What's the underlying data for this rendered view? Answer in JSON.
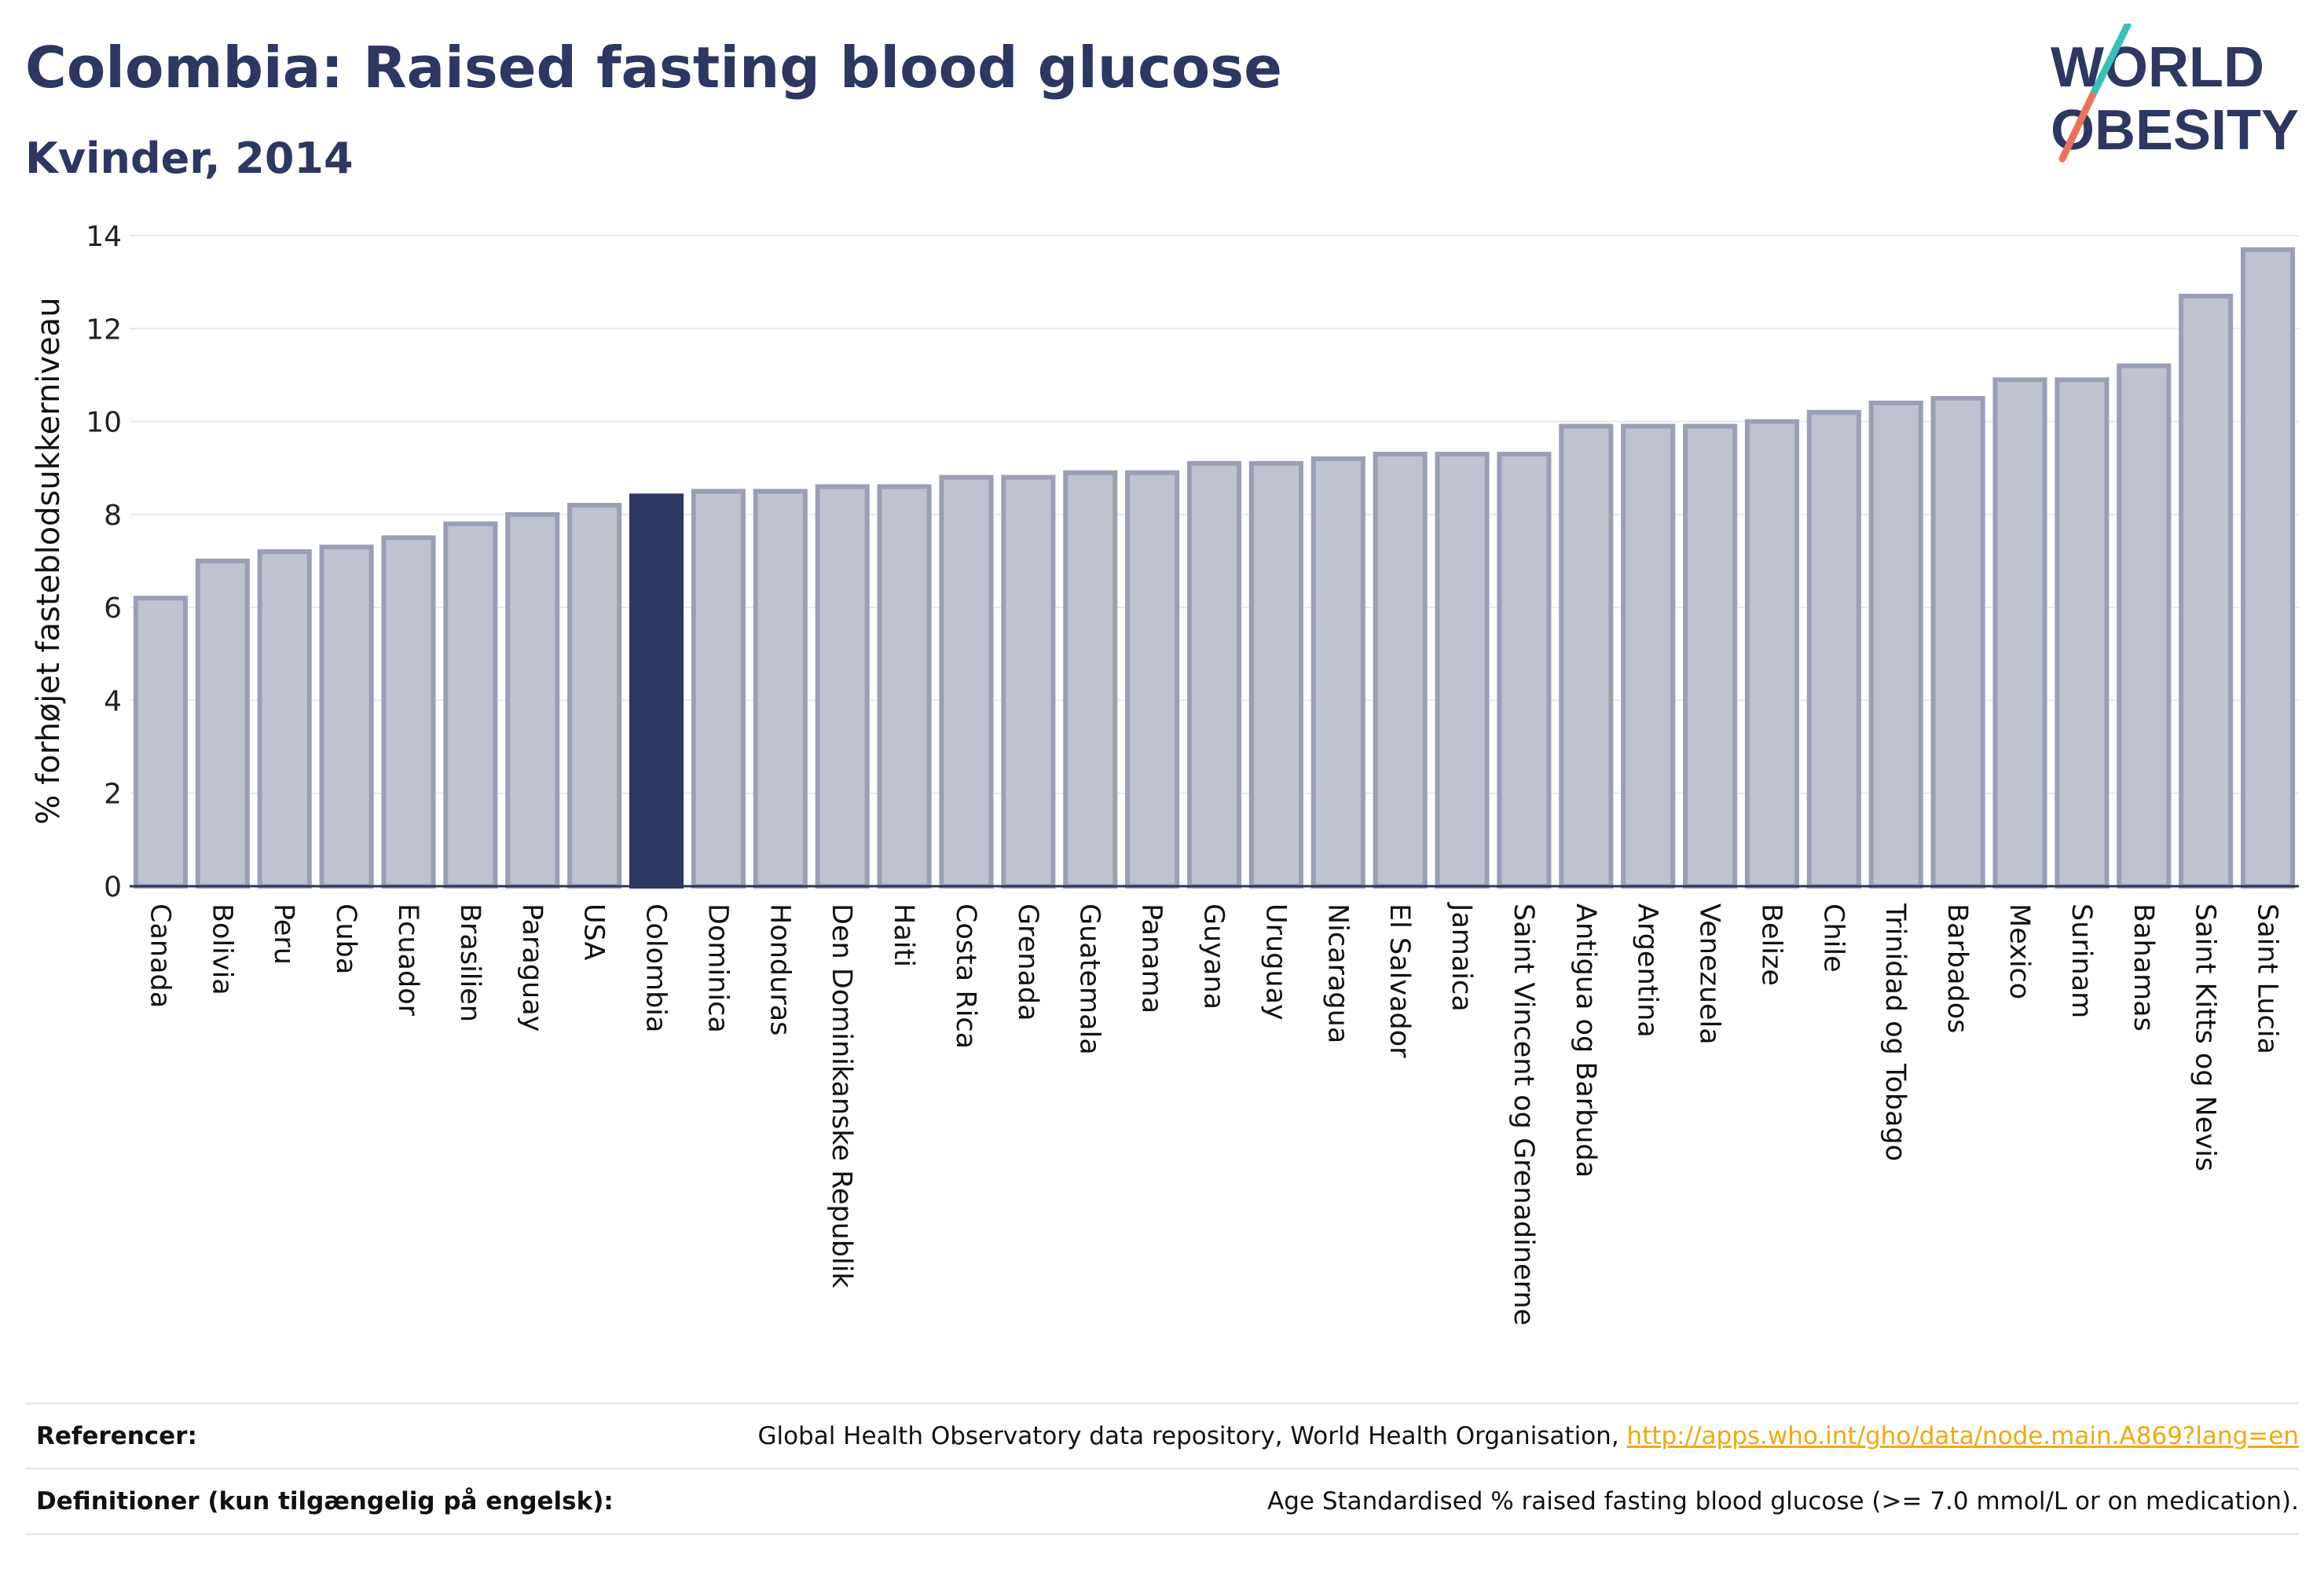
{
  "header": {
    "title": "Colombia: Raised fasting blood glucose",
    "subtitle": "Kvinder, 2014"
  },
  "logo": {
    "line1": "WORLD",
    "line2": "OBESITY"
  },
  "colors": {
    "bar": "#bfc2cf",
    "bar_border": "#9a9fb6",
    "highlight": "#2c3762",
    "grid": "#e6e8ef",
    "axis": "#2c3762",
    "logo_text": "#2c3762",
    "logo_teal": "#3bbfb9",
    "logo_coral": "#e8735c",
    "link": "#f0a80f"
  },
  "chart_data": {
    "type": "bar",
    "title": "Colombia: Raised fasting blood glucose",
    "subtitle": "Kvinder, 2014",
    "xlabel": "",
    "ylabel": "% forhøjet fasteblodsukkerniveau",
    "ylim": [
      0,
      14
    ],
    "yticks": [
      0,
      2,
      4,
      6,
      8,
      10,
      12,
      14
    ],
    "grid": true,
    "highlight": "Colombia",
    "categories": [
      "Canada",
      "Bolivia",
      "Peru",
      "Cuba",
      "Ecuador",
      "Brasilien",
      "Paraguay",
      "USA",
      "Colombia",
      "Dominica",
      "Honduras",
      "Den Dominikanske Republik",
      "Haiti",
      "Costa Rica",
      "Grenada",
      "Guatemala",
      "Panama",
      "Guyana",
      "Uruguay",
      "Nicaragua",
      "El Salvador",
      "Jamaica",
      "Saint Vincent og Grenadinerne",
      "Antigua og Barbuda",
      "Argentina",
      "Venezuela",
      "Belize",
      "Chile",
      "Trinidad og Tobago",
      "Barbados",
      "Mexico",
      "Surinam",
      "Bahamas",
      "Saint Kitts og Nevis",
      "Saint Lucia"
    ],
    "values": [
      6.2,
      7.0,
      7.2,
      7.3,
      7.5,
      7.8,
      8.0,
      8.2,
      8.4,
      8.5,
      8.5,
      8.6,
      8.6,
      8.8,
      8.8,
      8.9,
      8.9,
      9.1,
      9.1,
      9.2,
      9.3,
      9.3,
      9.3,
      9.9,
      9.9,
      9.9,
      10.0,
      10.2,
      10.4,
      10.5,
      10.9,
      10.9,
      11.2,
      12.7,
      13.7
    ]
  },
  "footer": {
    "references_label": "Referencer:",
    "references_text": "Global Health Observatory data repository, World Health Organisation, ",
    "references_link": "http://apps.who.int/gho/data/node.main.A869?lang=en",
    "definitions_label": "Definitioner (kun tilgængelig på engelsk):",
    "definitions_text": "Age Standardised % raised fasting blood glucose (>= 7.0 mmol/L or on medication)."
  }
}
